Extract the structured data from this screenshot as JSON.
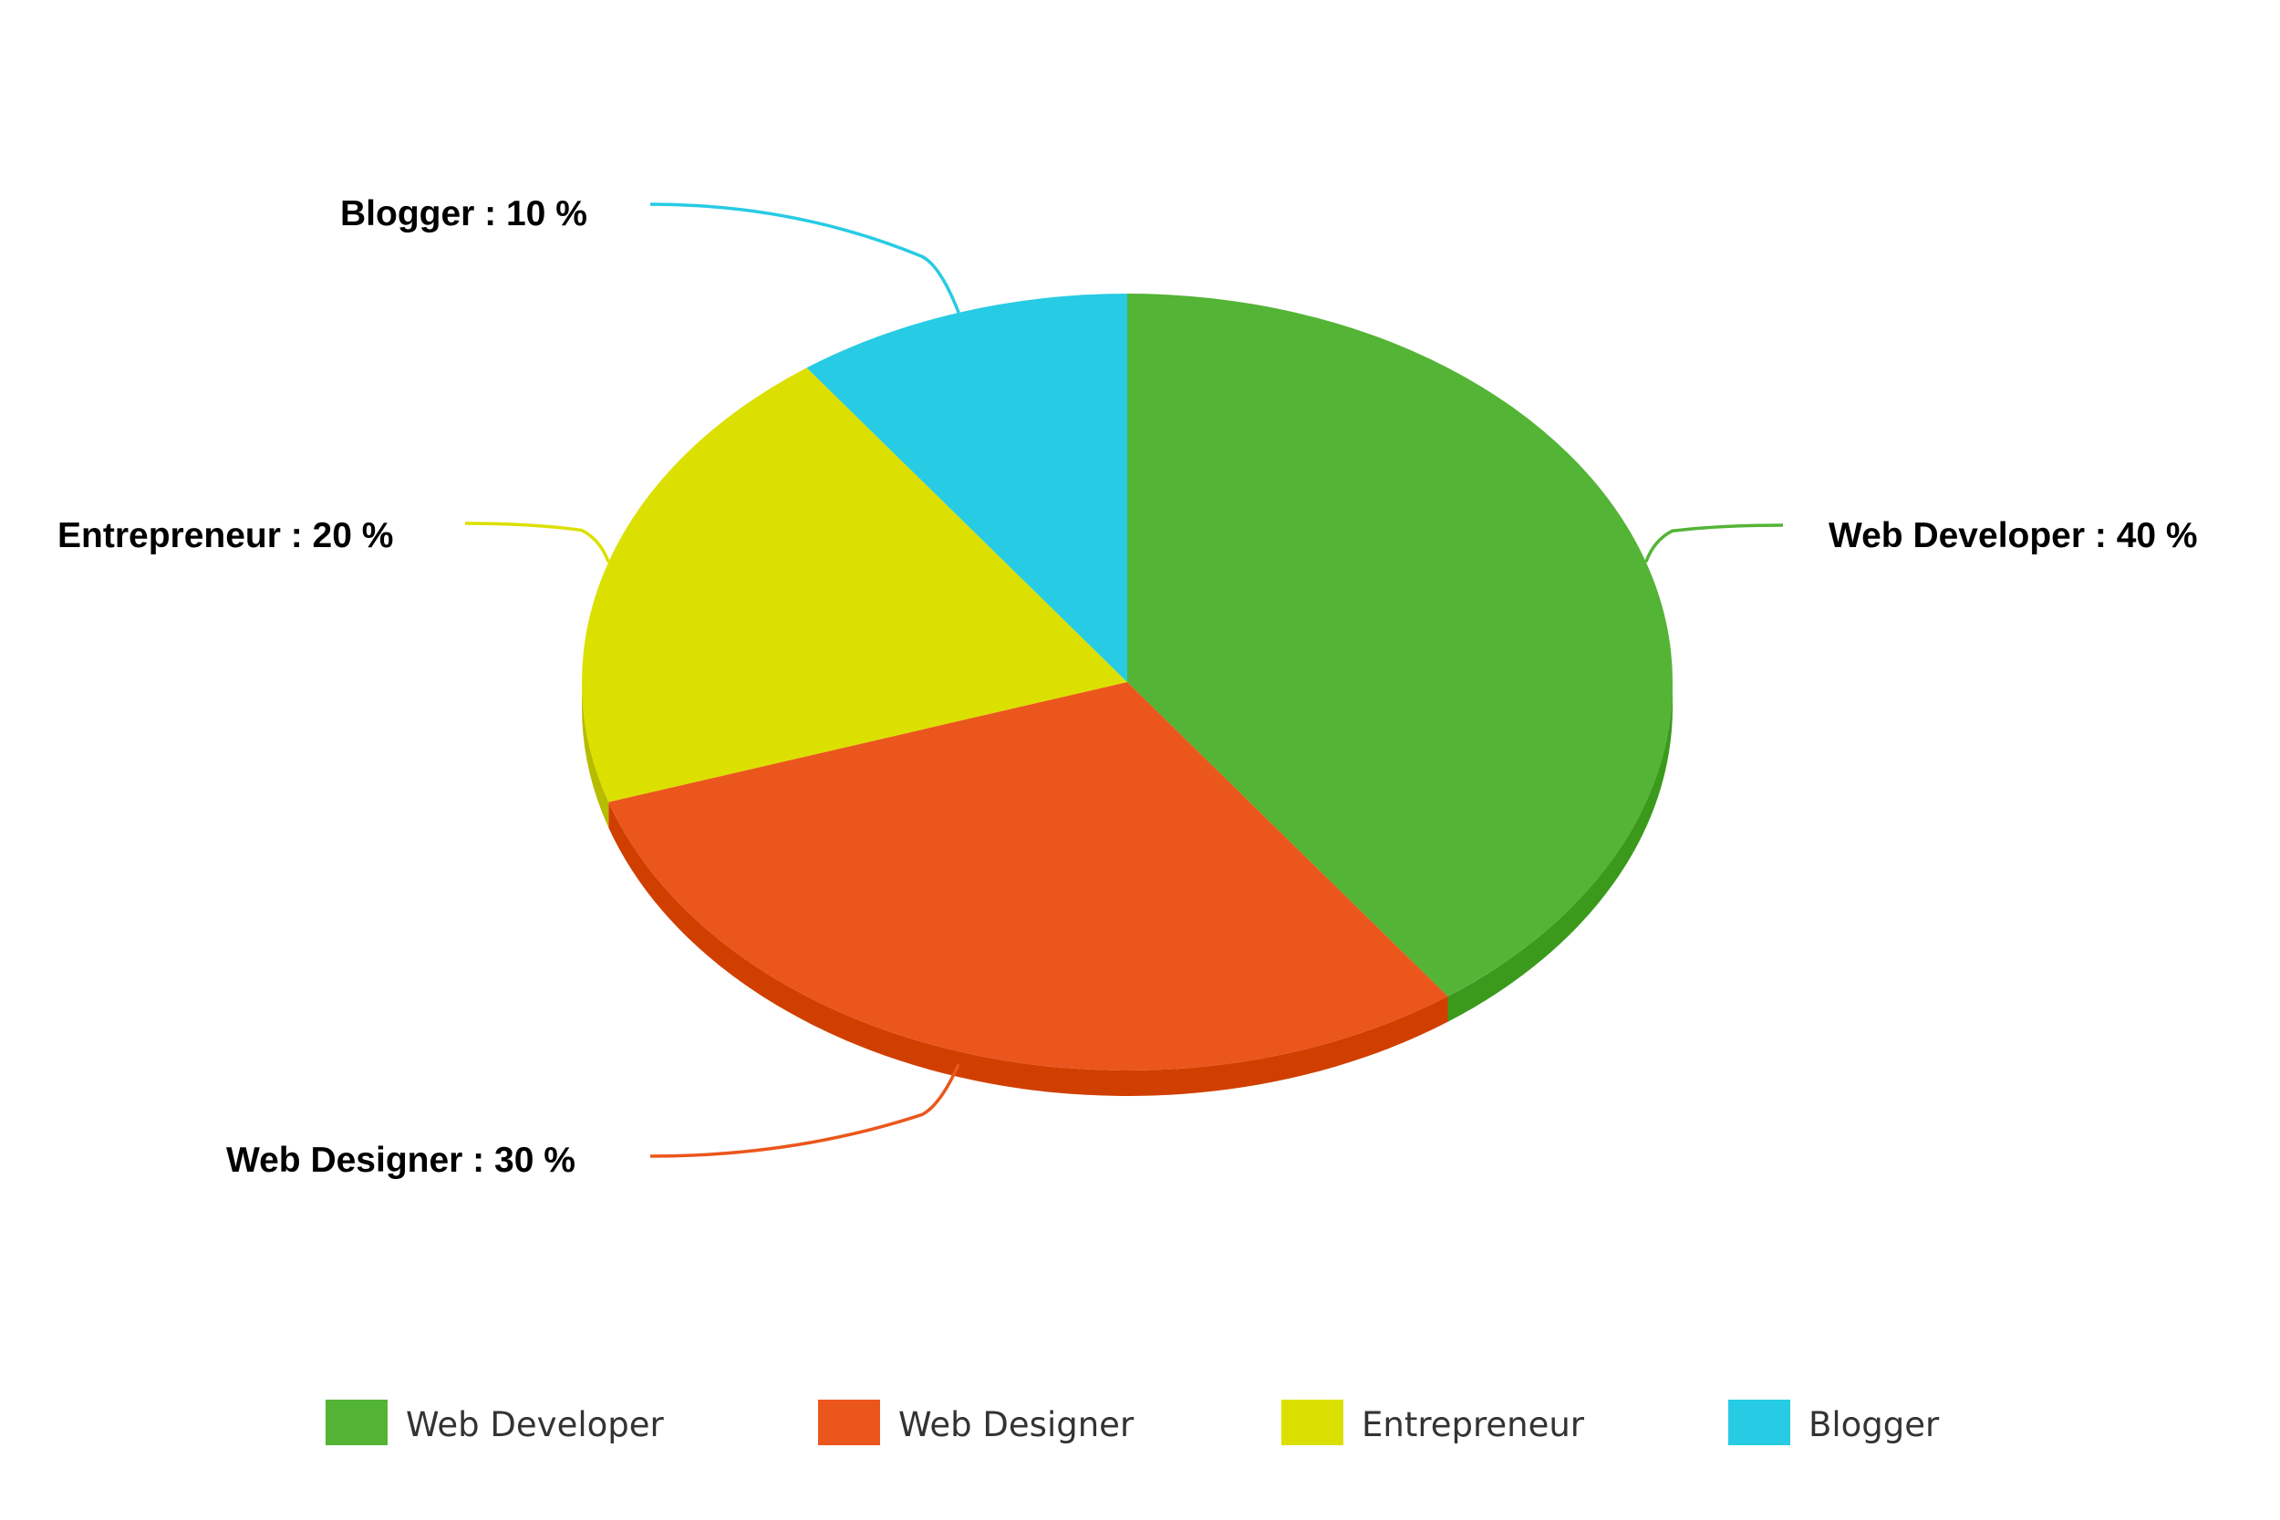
{
  "chart_data": {
    "type": "pie",
    "three_d": true,
    "separator": " : ",
    "unit": " %",
    "slices": [
      {
        "name": "Web Developer",
        "value": 40,
        "color": "#53b435",
        "side_color": "#3b9a1c"
      },
      {
        "name": "Web Designer",
        "value": 30,
        "color": "#eb561c",
        "side_color": "#d03f00"
      },
      {
        "name": "Entrepreneur",
        "value": 20,
        "color": "#dce000",
        "side_color": "#b8bc00"
      },
      {
        "name": "Blogger",
        "value": 10,
        "color": "#27cbe3",
        "side_color": "#12a9c0"
      }
    ],
    "legend": {
      "placement": "bottom",
      "items": [
        "Web Developer",
        "Web Designer",
        "Entrepreneur",
        "Blogger"
      ]
    },
    "data_labels": [
      "Web Developer : 40 %",
      "Web Designer : 30 %",
      "Entrepreneur : 20 %",
      "Blogger : 10 %"
    ]
  }
}
